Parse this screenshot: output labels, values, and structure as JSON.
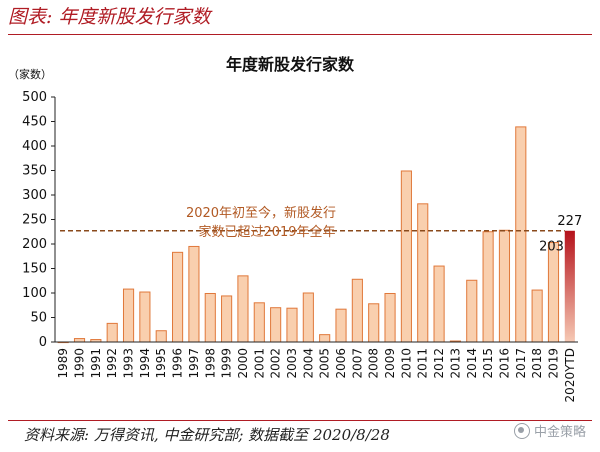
{
  "header": {
    "title": "图表: 年度新股发行家数"
  },
  "footer": {
    "source": "资料来源: 万得资讯, 中金研究部; 数据截至 2020/8/28"
  },
  "watermark": {
    "label": "中金策略"
  },
  "chart_data": {
    "type": "bar",
    "title": "年度新股发行家数",
    "ylabel": "（家数）",
    "xlabel": "",
    "ylim": [
      0,
      500
    ],
    "yticks": [
      0,
      50,
      100,
      150,
      200,
      250,
      300,
      350,
      400,
      450,
      500
    ],
    "grid": false,
    "categories": [
      "1989",
      "1990",
      "1991",
      "1992",
      "1993",
      "1994",
      "1995",
      "1996",
      "1997",
      "1998",
      "1999",
      "2000",
      "2001",
      "2002",
      "2003",
      "2004",
      "2005",
      "2006",
      "2007",
      "2008",
      "2009",
      "2010",
      "2011",
      "2012",
      "2013",
      "2014",
      "2015",
      "2016",
      "2017",
      "2018",
      "2019",
      "2020YTD"
    ],
    "values": [
      0,
      7,
      5,
      38,
      108,
      102,
      23,
      183,
      195,
      99,
      94,
      135,
      80,
      70,
      69,
      100,
      15,
      67,
      128,
      78,
      99,
      349,
      282,
      155,
      2,
      126,
      225,
      228,
      439,
      106,
      203,
      227
    ],
    "data_labels": [
      {
        "category": "2019",
        "text": "203"
      },
      {
        "category": "2020YTD",
        "text": "227"
      }
    ],
    "reference_line": {
      "value": 227
    },
    "annotation": {
      "line1": "2020年初至今，新股发行",
      "line2": "家数已超过2019年全年"
    },
    "colors": {
      "bar_fill": "#f9cfae",
      "bar_stroke": "#e0783a",
      "highlight_top": "#b5121b",
      "highlight_bottom": "#f6c9b4",
      "annotation": "#b25a24",
      "reference_line": "#8a4a1c"
    }
  }
}
